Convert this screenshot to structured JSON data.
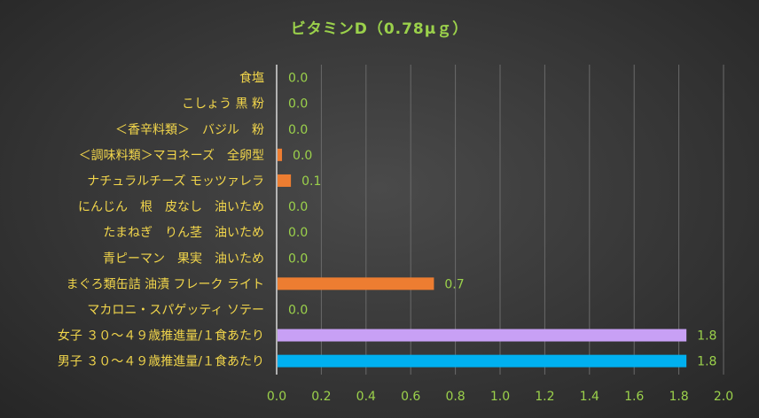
{
  "chart_data": {
    "type": "bar",
    "orientation": "horizontal",
    "title": "ビタミンD（0.78μｇ）",
    "categories": [
      "食塩",
      "こしょう 黒 粉",
      "＜香辛料類＞　バジル　粉",
      "＜調味料類＞マヨネーズ　全卵型",
      "ナチュラルチーズ モッツァレラ",
      "にんじん　根　皮なし　油いため",
      "たまねぎ　りん茎　油いため",
      "青ピーマン　果実　油いため",
      "まぐろ類缶詰 油漬 フレーク ライト",
      "マカロニ・スパゲッティ ソテー",
      "女子 ３０～４９歳推進量/１食あたり",
      "男子 ３０～４９歳推進量/１食あたり"
    ],
    "values": [
      0.0,
      0.0,
      0.0,
      0.02,
      0.06,
      0.0,
      0.0,
      0.0,
      0.7,
      0.0,
      1.83,
      1.83
    ],
    "data_labels": [
      "0.0",
      "0.0",
      "0.0",
      "0.0",
      "0.1",
      "0.0",
      "0.0",
      "0.0",
      "0.7",
      "0.0",
      "1.8",
      "1.8"
    ],
    "bar_colors": [
      "#ed7d31",
      "#ed7d31",
      "#ed7d31",
      "#ed7d31",
      "#ed7d31",
      "#ed7d31",
      "#ed7d31",
      "#ed7d31",
      "#ed7d31",
      "#ed7d31",
      "#c8a0f5",
      "#00b0f0"
    ],
    "xlim": [
      0,
      2.0
    ],
    "x_ticks": [
      "0.0",
      "0.2",
      "0.4",
      "0.6",
      "0.8",
      "1.0",
      "1.2",
      "1.4",
      "1.6",
      "1.8",
      "2.0"
    ],
    "grid": true,
    "xlabel": "",
    "ylabel": ""
  }
}
